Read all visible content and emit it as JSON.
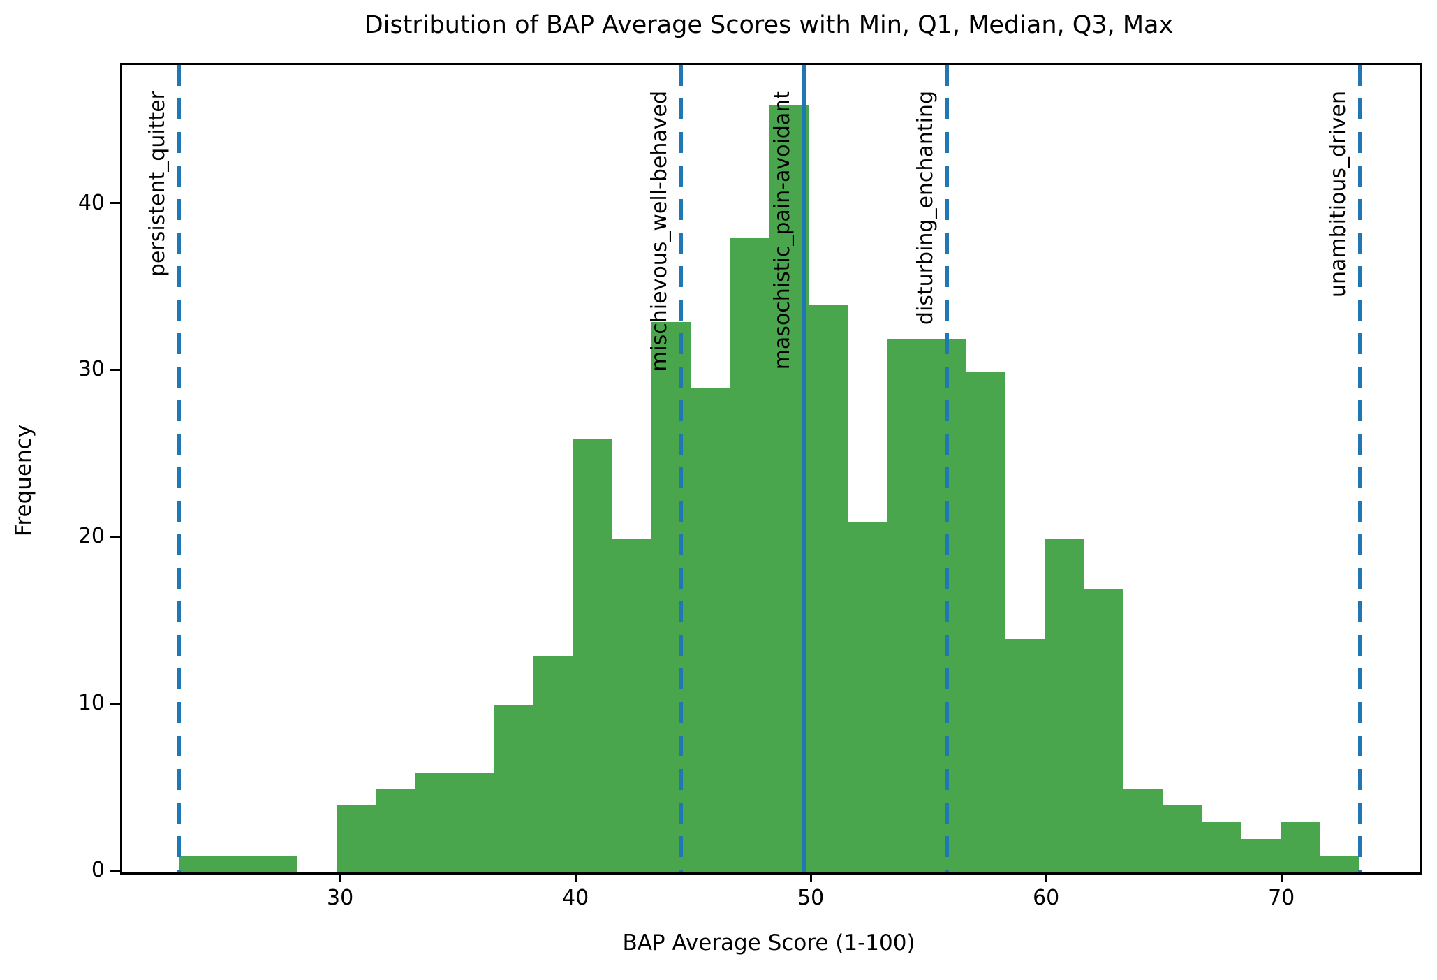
{
  "chart_data": {
    "type": "bar",
    "subtype": "histogram",
    "title": "Distribution of BAP Average Scores with Min, Q1, Median, Q3, Max",
    "xlabel": "BAP Average Score (1-100)",
    "ylabel": "Frequency",
    "bar_color": "#4aa64d",
    "line_color": "#1f77b4",
    "xlim": [
      20.65,
      75.78
    ],
    "ylim": [
      0,
      48.4
    ],
    "xticks": [
      30,
      40,
      50,
      60,
      70
    ],
    "yticks": [
      0,
      10,
      20,
      30,
      40
    ],
    "grid": false,
    "bin_start": 23.06,
    "bin_width": 1.6727,
    "counts": [
      1,
      1,
      1,
      0,
      4,
      5,
      6,
      6,
      10,
      13,
      26,
      20,
      33,
      29,
      38,
      46,
      34,
      21,
      32,
      32,
      30,
      14,
      20,
      17,
      5,
      4,
      3,
      2,
      3,
      1
    ],
    "stats": {
      "min": 23.1,
      "q1": 44.4,
      "median": 49.6,
      "q3": 55.7,
      "max": 73.2
    },
    "vlines": [
      {
        "id": "min",
        "label": "persistent_quitter",
        "value": 23.06,
        "style": "dashed"
      },
      {
        "id": "q1",
        "label": "mischievous_well-behaved",
        "value": 44.39,
        "style": "dashed"
      },
      {
        "id": "median",
        "label": "masochistic_pain-avoidant",
        "value": 49.61,
        "style": "solid"
      },
      {
        "id": "q3",
        "label": "disturbing_enchanting",
        "value": 55.7,
        "style": "dashed"
      },
      {
        "id": "max",
        "label": "unambitious_driven",
        "value": 73.24,
        "style": "dashed"
      }
    ]
  }
}
